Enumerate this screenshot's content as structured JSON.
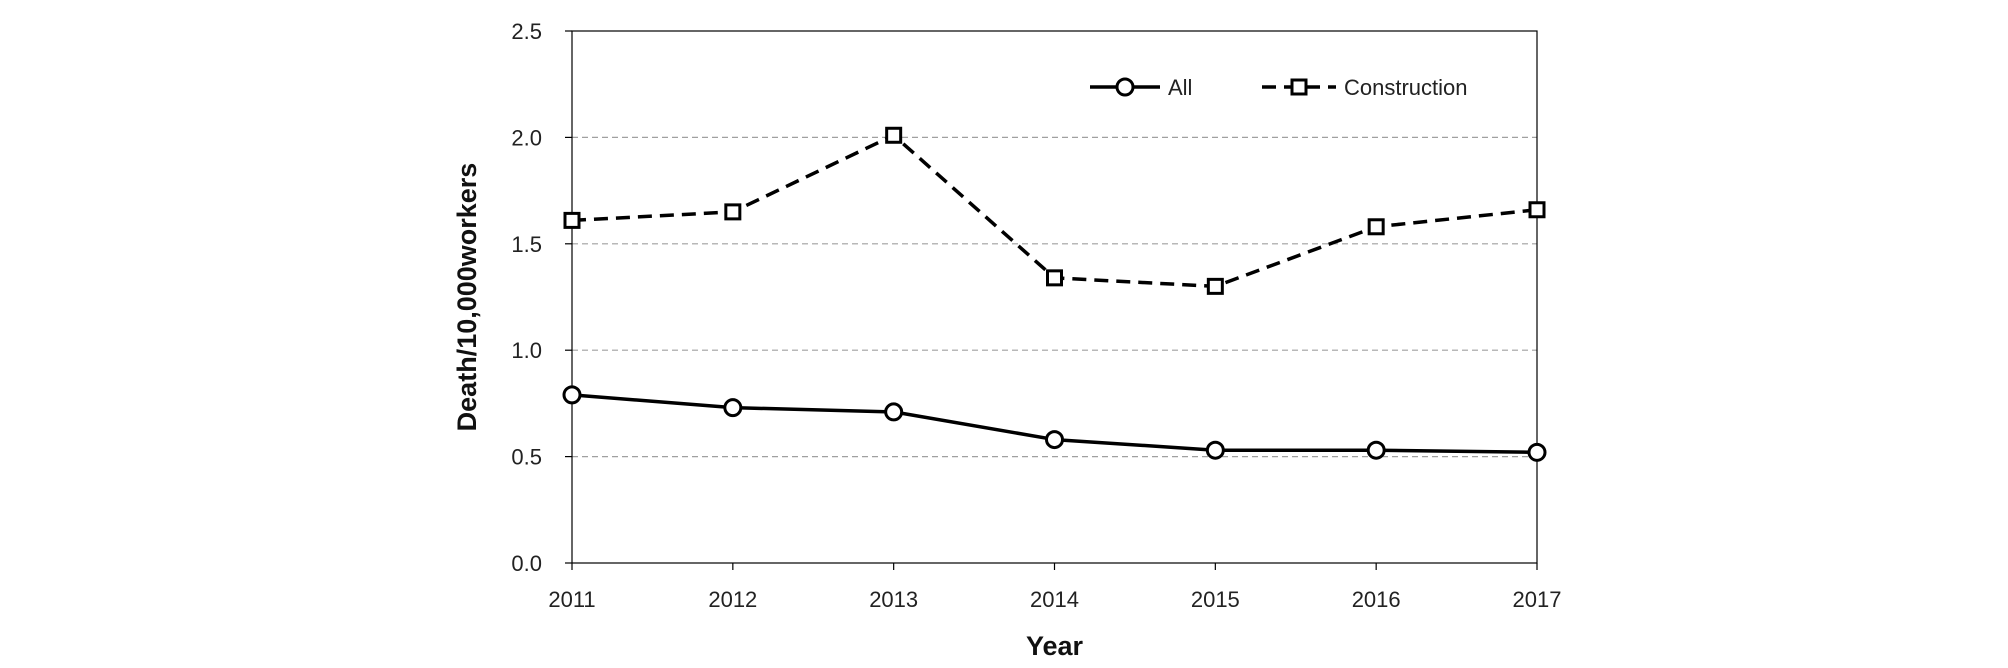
{
  "chart_data": {
    "type": "line",
    "title": "",
    "xlabel": "Year",
    "ylabel": "Death/10,000workers",
    "categories": [
      "2011",
      "2012",
      "2013",
      "2014",
      "2015",
      "2016",
      "2017"
    ],
    "ylim": [
      0,
      2.5
    ],
    "yticks": [
      "0.0",
      "0.5",
      "1.0",
      "1.5",
      "2.0",
      "2.5"
    ],
    "grid": "horizontal dashed",
    "legend_position": "top-right",
    "series": [
      {
        "name": "All",
        "marker": "circle",
        "line": "solid",
        "values": [
          0.79,
          0.73,
          0.71,
          0.58,
          0.53,
          0.53,
          0.52
        ]
      },
      {
        "name": "Construction",
        "marker": "square",
        "line": "dashed",
        "values": [
          1.61,
          1.65,
          2.01,
          1.34,
          1.3,
          1.58,
          1.66
        ]
      }
    ],
    "colors": {
      "line": "#000000",
      "grid": "#a0a0a0",
      "axis": "#000000"
    }
  }
}
